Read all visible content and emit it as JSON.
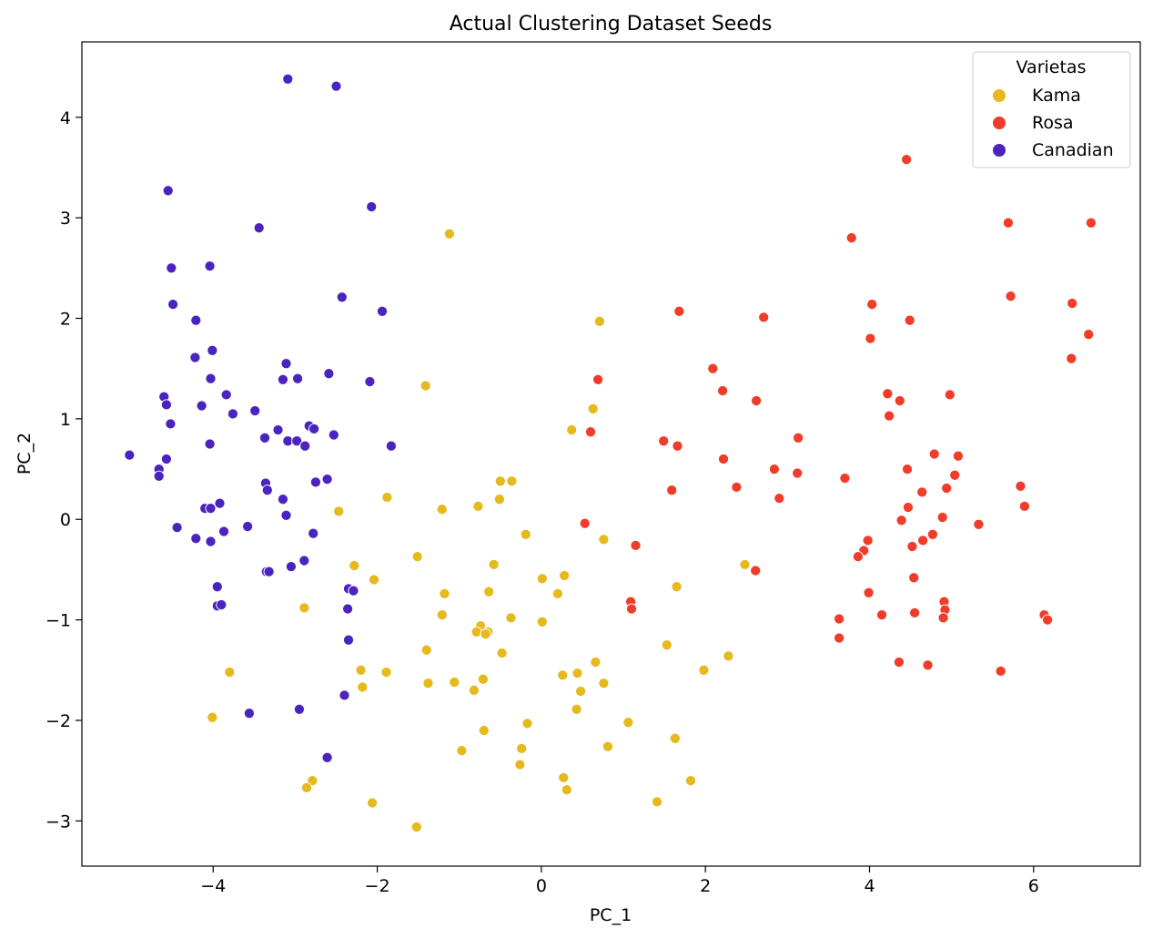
{
  "chart_data": {
    "type": "scatter",
    "title": "Actual Clustering Dataset Seeds",
    "xlabel": "PC_1",
    "ylabel": "PC_2",
    "xlim": [
      -5.6,
      7.3
    ],
    "ylim": [
      -3.45,
      4.75
    ],
    "xticks": [
      -4,
      -2,
      0,
      2,
      4,
      6
    ],
    "yticks": [
      -3,
      -2,
      -1,
      0,
      1,
      2,
      3,
      4
    ],
    "xtick_labels": [
      "−4",
      "−2",
      "0",
      "2",
      "4",
      "6"
    ],
    "ytick_labels": [
      "−3",
      "−2",
      "−1",
      "0",
      "1",
      "2",
      "3",
      "4"
    ],
    "grid": false,
    "legend": {
      "title": "Varietas",
      "placement": "top-right"
    },
    "series": [
      {
        "name": "Kama",
        "color": "#e6b91e",
        "points": [
          [
            -1.12,
            2.84
          ],
          [
            0.71,
            1.97
          ],
          [
            -1.41,
            1.33
          ],
          [
            0.63,
            1.1
          ],
          [
            0.37,
            0.89
          ],
          [
            -0.5,
            0.38
          ],
          [
            -0.36,
            0.38
          ],
          [
            -1.88,
            0.22
          ],
          [
            -0.51,
            0.2
          ],
          [
            -0.77,
            0.13
          ],
          [
            -1.21,
            0.1
          ],
          [
            -2.47,
            0.08
          ],
          [
            -0.19,
            -0.15
          ],
          [
            0.76,
            -0.2
          ],
          [
            -1.51,
            -0.37
          ],
          [
            -2.28,
            -0.46
          ],
          [
            -0.58,
            -0.45
          ],
          [
            2.48,
            -0.45
          ],
          [
            0.28,
            -0.56
          ],
          [
            -2.04,
            -0.6
          ],
          [
            0.01,
            -0.59
          ],
          [
            0.2,
            -0.74
          ],
          [
            1.65,
            -0.67
          ],
          [
            -1.18,
            -0.74
          ],
          [
            -0.64,
            -0.72
          ],
          [
            -2.89,
            -0.88
          ],
          [
            -1.21,
            -0.95
          ],
          [
            -0.37,
            -0.98
          ],
          [
            0.01,
            -1.02
          ],
          [
            -0.74,
            -1.06
          ],
          [
            -0.79,
            -1.12
          ],
          [
            -0.65,
            -1.12
          ],
          [
            -0.68,
            -1.14
          ],
          [
            1.53,
            -1.25
          ],
          [
            -1.4,
            -1.3
          ],
          [
            -0.48,
            -1.33
          ],
          [
            2.28,
            -1.36
          ],
          [
            0.66,
            -1.42
          ],
          [
            -3.8,
            -1.52
          ],
          [
            -1.89,
            -1.52
          ],
          [
            -2.2,
            -1.5
          ],
          [
            0.44,
            -1.53
          ],
          [
            0.26,
            -1.55
          ],
          [
            1.98,
            -1.5
          ],
          [
            -0.71,
            -1.59
          ],
          [
            -1.38,
            -1.63
          ],
          [
            -1.06,
            -1.62
          ],
          [
            0.76,
            -1.63
          ],
          [
            -2.18,
            -1.67
          ],
          [
            -0.82,
            -1.7
          ],
          [
            0.48,
            -1.71
          ],
          [
            0.43,
            -1.89
          ],
          [
            -4.01,
            -1.97
          ],
          [
            1.06,
            -2.02
          ],
          [
            -0.17,
            -2.03
          ],
          [
            -0.7,
            -2.1
          ],
          [
            1.63,
            -2.18
          ],
          [
            0.81,
            -2.26
          ],
          [
            -0.24,
            -2.28
          ],
          [
            -0.97,
            -2.3
          ],
          [
            -0.26,
            -2.44
          ],
          [
            0.27,
            -2.57
          ],
          [
            1.82,
            -2.6
          ],
          [
            -2.79,
            -2.6
          ],
          [
            -2.86,
            -2.67
          ],
          [
            0.31,
            -2.69
          ],
          [
            1.41,
            -2.81
          ],
          [
            -2.06,
            -2.82
          ],
          [
            -1.52,
            -3.06
          ]
        ]
      },
      {
        "name": "Rosa",
        "color": "#f03c28",
        "points": [
          [
            4.45,
            3.58
          ],
          [
            5.69,
            2.95
          ],
          [
            6.7,
            2.95
          ],
          [
            3.78,
            2.8
          ],
          [
            5.72,
            2.22
          ],
          [
            4.03,
            2.14
          ],
          [
            6.47,
            2.15
          ],
          [
            1.68,
            2.07
          ],
          [
            2.71,
            2.01
          ],
          [
            4.49,
            1.98
          ],
          [
            4.01,
            1.8
          ],
          [
            6.67,
            1.84
          ],
          [
            6.46,
            1.6
          ],
          [
            2.09,
            1.5
          ],
          [
            0.69,
            1.39
          ],
          [
            2.21,
            1.28
          ],
          [
            4.22,
            1.25
          ],
          [
            4.98,
            1.24
          ],
          [
            4.37,
            1.18
          ],
          [
            2.62,
            1.18
          ],
          [
            4.24,
            1.03
          ],
          [
            0.6,
            0.87
          ],
          [
            3.13,
            0.81
          ],
          [
            1.49,
            0.78
          ],
          [
            1.66,
            0.73
          ],
          [
            4.79,
            0.65
          ],
          [
            5.08,
            0.63
          ],
          [
            2.22,
            0.6
          ],
          [
            2.84,
            0.5
          ],
          [
            4.46,
            0.5
          ],
          [
            3.12,
            0.46
          ],
          [
            5.04,
            0.44
          ],
          [
            3.7,
            0.41
          ],
          [
            2.38,
            0.32
          ],
          [
            5.84,
            0.33
          ],
          [
            4.94,
            0.31
          ],
          [
            1.59,
            0.29
          ],
          [
            4.64,
            0.27
          ],
          [
            2.9,
            0.21
          ],
          [
            4.47,
            0.12
          ],
          [
            5.89,
            0.13
          ],
          [
            4.89,
            0.02
          ],
          [
            4.39,
            -0.01
          ],
          [
            0.53,
            -0.04
          ],
          [
            5.33,
            -0.05
          ],
          [
            4.77,
            -0.15
          ],
          [
            3.98,
            -0.21
          ],
          [
            4.65,
            -0.21
          ],
          [
            1.15,
            -0.26
          ],
          [
            4.52,
            -0.27
          ],
          [
            3.93,
            -0.31
          ],
          [
            3.86,
            -0.37
          ],
          [
            2.61,
            -0.51
          ],
          [
            4.54,
            -0.58
          ],
          [
            1.09,
            -0.82
          ],
          [
            4.91,
            -0.82
          ],
          [
            4.92,
            -0.9
          ],
          [
            1.1,
            -0.89
          ],
          [
            4.55,
            -0.93
          ],
          [
            4.15,
            -0.95
          ],
          [
            6.13,
            -0.95
          ],
          [
            3.63,
            -0.99
          ],
          [
            4.9,
            -0.98
          ],
          [
            6.17,
            -1.0
          ],
          [
            3.99,
            -0.73
          ],
          [
            3.63,
            -1.18
          ],
          [
            4.36,
            -1.42
          ],
          [
            4.71,
            -1.45
          ],
          [
            5.6,
            -1.51
          ]
        ]
      },
      {
        "name": "Canadian",
        "color": "#4b24c0",
        "points": [
          [
            -3.09,
            4.38
          ],
          [
            -2.5,
            4.31
          ],
          [
            -4.55,
            3.27
          ],
          [
            -2.07,
            3.11
          ],
          [
            -3.44,
            2.9
          ],
          [
            -4.51,
            2.5
          ],
          [
            -4.04,
            2.52
          ],
          [
            -2.43,
            2.21
          ],
          [
            -4.49,
            2.14
          ],
          [
            -1.94,
            2.07
          ],
          [
            -4.21,
            1.98
          ],
          [
            -4.01,
            1.68
          ],
          [
            -4.22,
            1.61
          ],
          [
            -3.11,
            1.55
          ],
          [
            -2.59,
            1.45
          ],
          [
            -2.97,
            1.4
          ],
          [
            -3.15,
            1.39
          ],
          [
            -4.03,
            1.4
          ],
          [
            -2.09,
            1.37
          ],
          [
            -3.84,
            1.24
          ],
          [
            -4.6,
            1.22
          ],
          [
            -4.57,
            1.14
          ],
          [
            -4.14,
            1.13
          ],
          [
            -3.49,
            1.08
          ],
          [
            -3.76,
            1.05
          ],
          [
            -4.52,
            0.95
          ],
          [
            -2.83,
            0.93
          ],
          [
            -2.77,
            0.9
          ],
          [
            -3.21,
            0.89
          ],
          [
            -2.53,
            0.84
          ],
          [
            -3.37,
            0.81
          ],
          [
            -3.09,
            0.78
          ],
          [
            -2.98,
            0.78
          ],
          [
            -4.04,
            0.75
          ],
          [
            -1.83,
            0.73
          ],
          [
            -2.88,
            0.73
          ],
          [
            -5.02,
            0.64
          ],
          [
            -4.57,
            0.6
          ],
          [
            -4.66,
            0.5
          ],
          [
            -4.66,
            0.43
          ],
          [
            -2.61,
            0.4
          ],
          [
            -2.75,
            0.37
          ],
          [
            -3.36,
            0.36
          ],
          [
            -3.34,
            0.29
          ],
          [
            -3.15,
            0.2
          ],
          [
            -3.92,
            0.16
          ],
          [
            -4.1,
            0.11
          ],
          [
            -4.03,
            0.11
          ],
          [
            -3.11,
            0.04
          ],
          [
            -4.44,
            -0.08
          ],
          [
            -3.58,
            -0.07
          ],
          [
            -3.87,
            -0.12
          ],
          [
            -2.78,
            -0.14
          ],
          [
            -4.21,
            -0.19
          ],
          [
            -4.03,
            -0.22
          ],
          [
            -2.89,
            -0.41
          ],
          [
            -3.05,
            -0.47
          ],
          [
            -3.35,
            -0.52
          ],
          [
            -3.32,
            -0.52
          ],
          [
            -3.95,
            -0.67
          ],
          [
            -2.35,
            -0.69
          ],
          [
            -2.29,
            -0.71
          ],
          [
            -3.95,
            -0.86
          ],
          [
            -3.9,
            -0.85
          ],
          [
            -2.36,
            -0.89
          ],
          [
            -2.35,
            -1.2
          ],
          [
            -2.4,
            -1.75
          ],
          [
            -3.56,
            -1.93
          ],
          [
            -2.95,
            -1.89
          ],
          [
            -2.61,
            -2.37
          ]
        ]
      }
    ]
  }
}
